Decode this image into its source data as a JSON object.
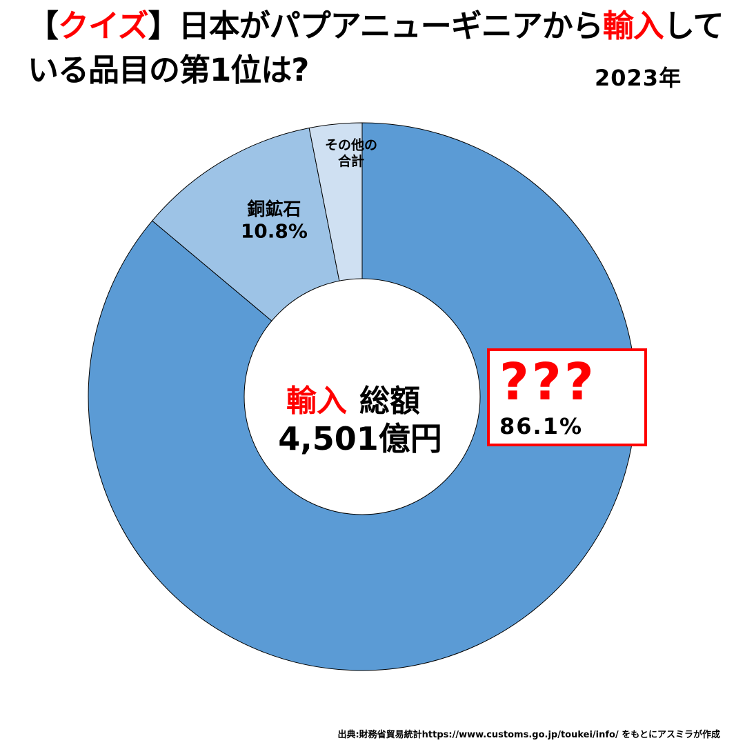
{
  "title": {
    "bracket_open": "【",
    "quiz": "クイズ",
    "bracket_close": "】",
    "part1": "日本がパプアニューギニアから",
    "highlight": "輸入",
    "part2": "している品目の第1位は?"
  },
  "year_label": "2023年",
  "center": {
    "label_red": "輸入",
    "label_black": "総額",
    "total": "4,501億円"
  },
  "answer": {
    "question_marks": "???",
    "percent": "86.1%"
  },
  "source": "出典:財務省貿易統計https://www.customs.go.jp/toukei/info/ をもとにアスミラが作成",
  "colors": {
    "accent_red": "#ff0000",
    "slice_main": "#5b9bd5",
    "slice_copper": "#9dc3e6",
    "slice_other": "#cfe0f2"
  },
  "chart_data": {
    "type": "pie",
    "variant": "donut",
    "categories": [
      "???",
      "銅鉱石",
      "その他の合計"
    ],
    "values": [
      86.1,
      10.8,
      3.1
    ],
    "value_labels": [
      "86.1%",
      "10.8%",
      ""
    ],
    "colors": [
      "#5b9bd5",
      "#9dc3e6",
      "#cfe0f2"
    ],
    "start": "top",
    "direction": "clockwise",
    "slice_labels": [
      {
        "lines": []
      },
      {
        "lines": [
          "銅鉱石",
          "10.8%"
        ]
      },
      {
        "lines": [
          "その他の",
          "合計"
        ]
      }
    ]
  }
}
